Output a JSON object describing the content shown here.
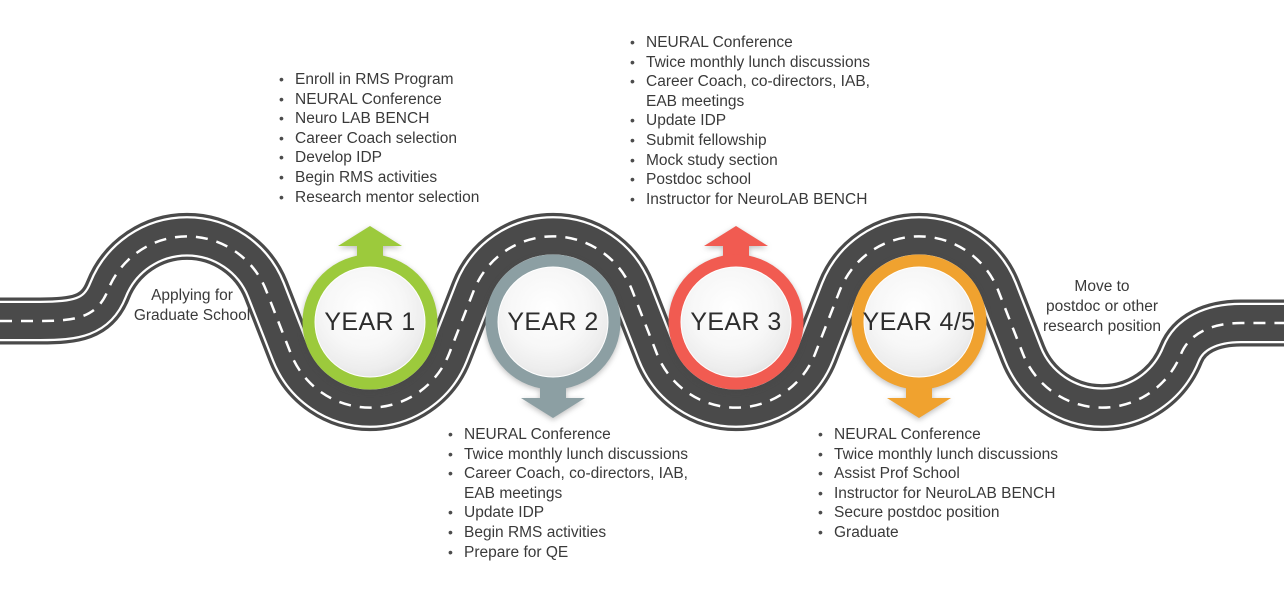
{
  "bullet_icon": "•",
  "road": {
    "asphalt_color": "#4a4a4a",
    "line_color": "#ffffff"
  },
  "start_label": {
    "text": "Applying for\nGraduate School"
  },
  "end_label": {
    "text": "Move to\npostdoc or other\nresearch position"
  },
  "milestones": [
    {
      "label": "YEAR 1",
      "color": "#9cca3c",
      "arrow": "up"
    },
    {
      "label": "YEAR 2",
      "color": "#8c9fa3",
      "arrow": "down"
    },
    {
      "label": "YEAR 3",
      "color": "#f15b51",
      "arrow": "up"
    },
    {
      "label": "YEAR 4/5",
      "color": "#f0a22f",
      "arrow": "down"
    }
  ],
  "lists": {
    "year1": {
      "items": [
        "Enroll in RMS Program",
        "NEURAL Conference",
        "Neuro LAB BENCH",
        "Career Coach selection",
        "Develop IDP",
        "Begin RMS activities",
        "Research mentor selection"
      ]
    },
    "year2": {
      "items": [
        "NEURAL Conference",
        "Twice monthly lunch discussions",
        "Career Coach, co-directors, IAB,\nEAB meetings",
        "Update IDP",
        "Begin RMS activities",
        "Prepare for QE"
      ]
    },
    "year3": {
      "items": [
        "NEURAL Conference",
        "Twice monthly lunch discussions",
        "Career Coach, co-directors, IAB,\nEAB meetings",
        "Update IDP",
        "Submit fellowship",
        "Mock study section",
        "Postdoc school",
        "Instructor for NeuroLAB BENCH"
      ]
    },
    "year45": {
      "items": [
        "NEURAL Conference",
        "Twice monthly lunch discussions",
        "Assist Prof School",
        "Instructor for NeuroLAB BENCH",
        "Secure postdoc position",
        "Graduate"
      ]
    }
  }
}
